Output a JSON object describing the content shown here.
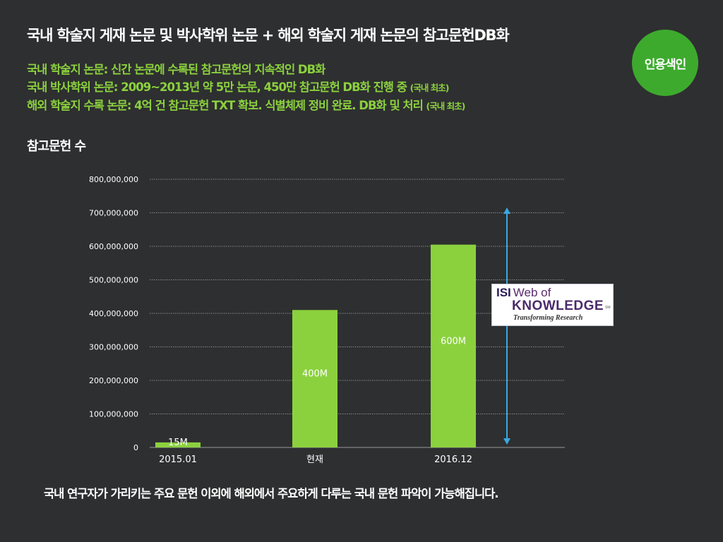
{
  "header": {
    "title": "국내 학술지 게재 논문 및 박사학위 논문 + 해외 학술지 게재 논문의 참고문헌DB화",
    "lines": [
      {
        "text": "국내 학술지 논문:  신간  논문에 수록된 참고문헌의 지속적인 DB화",
        "note": ""
      },
      {
        "text": "국내 박사학위 논문:  2009~2013년 약 5만 논문, 450만 참고문헌 DB화 진행 중",
        "note": "(국내 최초)"
      },
      {
        "text": "해외 학술지 수록 논문: 4억 건 참고문헌 TXT 확보. 식별체제 정비 완료. DB화 및 처리",
        "note": "(국내 최초)"
      }
    ]
  },
  "badge": {
    "label": "인용색인"
  },
  "section": {
    "title": "참고문헌 수"
  },
  "logo": {
    "isi": "ISI",
    "web_of": "Web of",
    "knowledge": "KNOWLEDGE",
    "tm": "SM",
    "tagline": "Transforming Research"
  },
  "colors": {
    "background": "#2e2f30",
    "bar": "#8bd13e",
    "accent_green": "#8bd13e",
    "arrow": "#39a8e0",
    "badge": "#3daa2e"
  },
  "chart_data": {
    "type": "bar",
    "categories": [
      "2015.01",
      "현재",
      "2016.12"
    ],
    "values": [
      15000000,
      410000000,
      605000000
    ],
    "bar_labels": [
      "15M",
      "400M",
      "600M"
    ],
    "y_ticks": [
      "0",
      "100,000,000",
      "200,000,000",
      "300,000,000",
      "400,000,000",
      "500,000,000",
      "600,000,000",
      "700,000,000",
      "800,000,000"
    ],
    "ylim": [
      0,
      800000000
    ],
    "grid": true,
    "arrow_range": [
      0,
      720000000
    ]
  },
  "footer": {
    "text": "국내 연구자가 가리키는 주요 문헌 이외에 해외에서 주요하게 다루는 국내 문헌 파악이 가능해집니다."
  }
}
